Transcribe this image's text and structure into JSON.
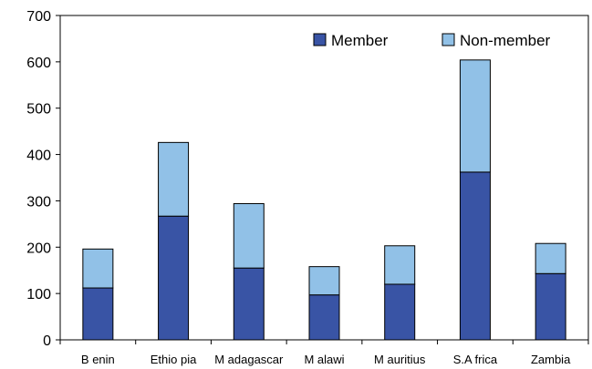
{
  "chart_data": {
    "type": "bar",
    "stacked": true,
    "categories": [
      "B enin",
      "Ethio pia",
      "M adagascar",
      "M alawi",
      "M auritius",
      "S.A frica",
      "Zambia"
    ],
    "series": [
      {
        "name": "Member",
        "color": "#3954a5",
        "values": [
          112,
          267,
          155,
          97,
          120,
          362,
          143
        ]
      },
      {
        "name": "Non-member",
        "color": "#91c1e7",
        "values": [
          84,
          159,
          139,
          61,
          83,
          242,
          65
        ]
      }
    ],
    "title": "",
    "xlabel": "",
    "ylabel": "",
    "ylim": [
      0,
      700
    ],
    "yticks": [
      0,
      100,
      200,
      300,
      400,
      500,
      600,
      700
    ],
    "grid": false,
    "legend_position": "top-right"
  }
}
